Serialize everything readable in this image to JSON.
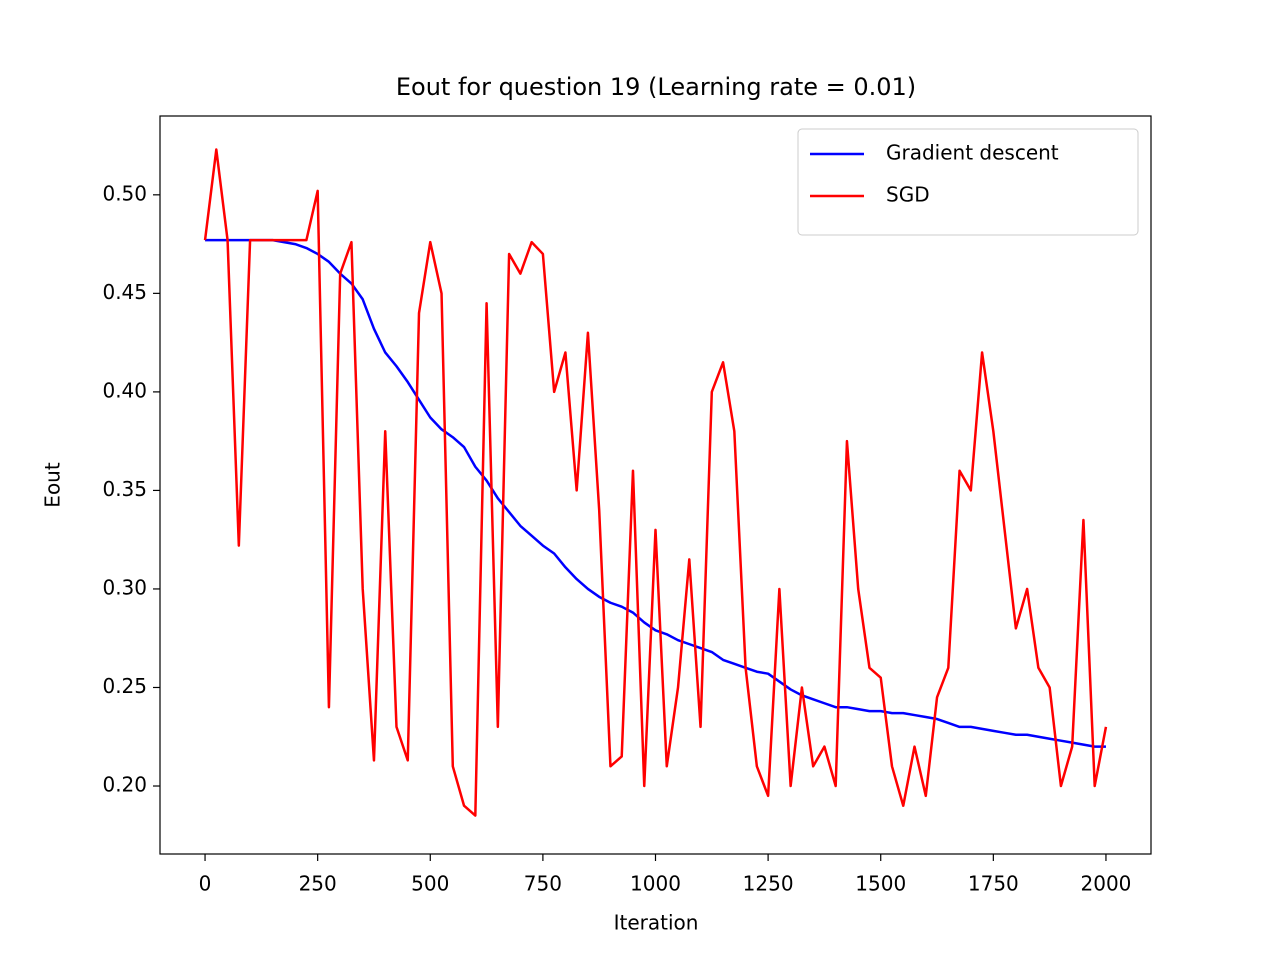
{
  "chart_data": {
    "type": "line",
    "title": "Eout for question 19 (Learning rate = 0.01)",
    "x_label": "Iteration",
    "y_label": "Eout",
    "x": [
      0,
      25,
      50,
      75,
      100,
      125,
      150,
      175,
      200,
      225,
      250,
      275,
      300,
      325,
      350,
      375,
      400,
      425,
      450,
      475,
      500,
      525,
      550,
      575,
      600,
      625,
      650,
      675,
      700,
      725,
      750,
      775,
      800,
      825,
      850,
      875,
      900,
      925,
      950,
      975,
      1000,
      1025,
      1050,
      1075,
      1100,
      1125,
      1150,
      1175,
      1200,
      1225,
      1250,
      1275,
      1300,
      1325,
      1350,
      1375,
      1400,
      1425,
      1450,
      1475,
      1500,
      1525,
      1550,
      1575,
      1600,
      1625,
      1650,
      1675,
      1700,
      1725,
      1750,
      1775,
      1800,
      1825,
      1850,
      1875,
      1900,
      1925,
      1950,
      1975,
      2000
    ],
    "series": [
      {
        "name": "Gradient descent",
        "color": "#0000ff",
        "values": [
          0.477,
          0.477,
          0.477,
          0.477,
          0.477,
          0.477,
          0.477,
          0.476,
          0.475,
          0.473,
          0.47,
          0.466,
          0.46,
          0.455,
          0.447,
          0.432,
          0.42,
          0.413,
          0.405,
          0.396,
          0.387,
          0.381,
          0.377,
          0.372,
          0.362,
          0.355,
          0.346,
          0.339,
          0.332,
          0.327,
          0.322,
          0.318,
          0.311,
          0.305,
          0.3,
          0.296,
          0.293,
          0.291,
          0.288,
          0.283,
          0.279,
          0.277,
          0.274,
          0.272,
          0.27,
          0.268,
          0.264,
          0.262,
          0.26,
          0.258,
          0.257,
          0.253,
          0.249,
          0.246,
          0.244,
          0.242,
          0.24,
          0.24,
          0.239,
          0.238,
          0.238,
          0.237,
          0.237,
          0.236,
          0.235,
          0.234,
          0.232,
          0.23,
          0.23,
          0.229,
          0.228,
          0.227,
          0.226,
          0.226,
          0.225,
          0.224,
          0.223,
          0.222,
          0.221,
          0.22,
          0.22
        ]
      },
      {
        "name": "SGD",
        "color": "#ff0000",
        "values": [
          0.477,
          0.523,
          0.477,
          0.322,
          0.477,
          0.477,
          0.477,
          0.477,
          0.477,
          0.477,
          0.502,
          0.24,
          0.46,
          0.476,
          0.3,
          0.213,
          0.38,
          0.23,
          0.213,
          0.44,
          0.476,
          0.45,
          0.21,
          0.19,
          0.185,
          0.445,
          0.23,
          0.47,
          0.46,
          0.476,
          0.47,
          0.4,
          0.42,
          0.35,
          0.43,
          0.34,
          0.21,
          0.215,
          0.36,
          0.2,
          0.33,
          0.21,
          0.25,
          0.315,
          0.23,
          0.4,
          0.415,
          0.38,
          0.26,
          0.21,
          0.195,
          0.3,
          0.2,
          0.25,
          0.21,
          0.22,
          0.2,
          0.375,
          0.3,
          0.26,
          0.255,
          0.21,
          0.19,
          0.22,
          0.195,
          0.245,
          0.26,
          0.36,
          0.35,
          0.42,
          0.38,
          0.33,
          0.28,
          0.3,
          0.26,
          0.25,
          0.2,
          0.22,
          0.335,
          0.2,
          0.23
        ]
      }
    ],
    "xlim": [
      -100,
      2100
    ],
    "ylim": [
      0.1655,
      0.54
    ],
    "xticks": [
      0,
      250,
      500,
      750,
      1000,
      1250,
      1500,
      1750,
      2000
    ],
    "yticks": [
      {
        "value": 0.2,
        "label": "0.20"
      },
      0.25,
      {
        "value": 0.3,
        "label": "0.30"
      },
      0.35,
      {
        "value": 0.4,
        "label": "0.40"
      },
      0.45,
      {
        "value": 0.5,
        "label": "0.50"
      }
    ],
    "legend": "upper right"
  }
}
